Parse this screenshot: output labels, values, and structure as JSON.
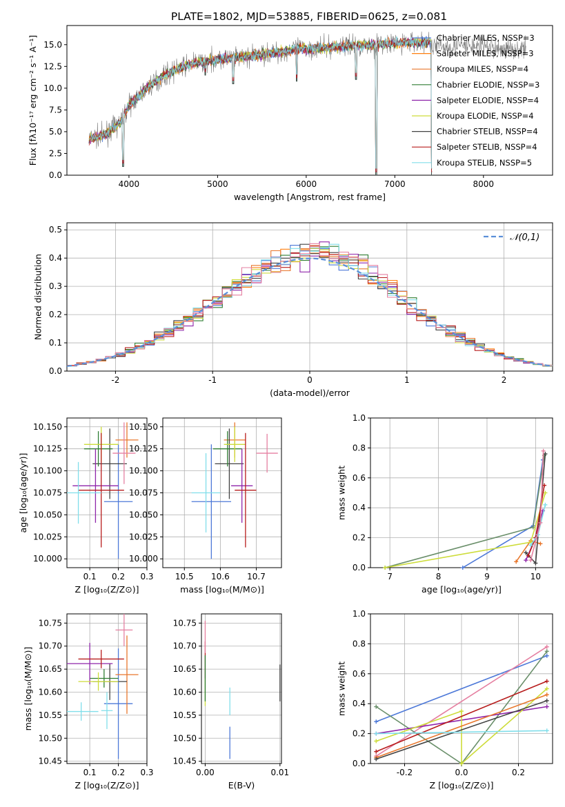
{
  "title": "PLATE=1802, MJD=53885, FIBERID=0625, z=0.081",
  "colors": [
    "#4c78d8",
    "#ff7f0e",
    "#e8762b",
    "#2e7d32",
    "#8e24aa",
    "#cddc39",
    "#424242",
    "#b71c1c",
    "#80deea",
    "#e57fa0",
    "#6a8f6a"
  ],
  "chart_data": [
    {
      "type": "line",
      "id": "spectrum",
      "xlabel": "wavelength [Angstrom, rest frame]",
      "ylabel": "Flux [fλ10⁻¹⁷ erg cm⁻² s⁻¹ A⁻¹]",
      "xlim": [
        3300,
        8780
      ],
      "ylim": [
        0,
        17.2
      ],
      "xticks": [
        4000,
        5000,
        6000,
        7000,
        8000
      ],
      "yticks": [
        0.0,
        2.5,
        5.0,
        7.5,
        10.0,
        12.5,
        15.0
      ],
      "x_range": [
        3550,
        7420
      ],
      "continuum": [
        [
          3550,
          4.2
        ],
        [
          3700,
          4.5
        ],
        [
          3900,
          6.0
        ],
        [
          4000,
          8.0
        ],
        [
          4200,
          10.0
        ],
        [
          4400,
          11.5
        ],
        [
          4700,
          12.8
        ],
        [
          5000,
          13.3
        ],
        [
          5300,
          13.6
        ],
        [
          5600,
          14.0
        ],
        [
          5900,
          14.5
        ],
        [
          6200,
          14.6
        ],
        [
          6500,
          14.9
        ],
        [
          6800,
          15.0
        ],
        [
          7100,
          15.2
        ],
        [
          7420,
          15.3
        ]
      ],
      "dips": [
        [
          3934,
          1.0
        ],
        [
          4861,
          11.5
        ],
        [
          5175,
          10.5
        ],
        [
          5893,
          10.8
        ],
        [
          6563,
          11.0
        ],
        [
          6790,
          0.0
        ],
        [
          7420,
          0.0
        ]
      ],
      "legend": [
        {
          "label": "Chabrier MILES, NSSP=3",
          "color": "#4c78d8"
        },
        {
          "label": "Salpeter MILES, NSSP=3",
          "color": "#ff7f0e"
        },
        {
          "label": "Kroupa MILES, NSSP=4",
          "color": "#e8762b"
        },
        {
          "label": "Chabrier ELODIE, NSSP=3",
          "color": "#2e7d32"
        },
        {
          "label": "Salpeter ELODIE, NSSP=4",
          "color": "#8e24aa"
        },
        {
          "label": "Kroupa ELODIE, NSSP=4",
          "color": "#cddc39"
        },
        {
          "label": "Chabrier STELIB, NSSP=4",
          "color": "#424242"
        },
        {
          "label": "Salpeter STELIB, NSSP=4",
          "color": "#b71c1c"
        },
        {
          "label": "Kroupa STELIB, NSSP=5",
          "color": "#80deea"
        }
      ],
      "grid": false,
      "legend_position": "right"
    },
    {
      "type": "line",
      "id": "residuals",
      "xlabel": "(data-model)/error",
      "ylabel": "Normed distribution",
      "xlim": [
        -2.5,
        2.5
      ],
      "ylim": [
        0,
        0.525
      ],
      "xticks": [
        -2,
        -1,
        0,
        1,
        2
      ],
      "yticks": [
        0.0,
        0.1,
        0.2,
        0.3,
        0.4,
        0.5
      ],
      "bin_width": 0.1,
      "legend": [
        {
          "label": "𝒩(0,1)",
          "color": "#5b8fd8"
        }
      ],
      "grid": true,
      "legend_position": "top-right"
    },
    {
      "type": "scatter",
      "id": "age_vs_Z",
      "xlabel": "Z [log₁₀(Z/Z⊙)]",
      "ylabel": "age  [log₁₀(age/yr)]",
      "xlim": [
        0.02,
        0.3
      ],
      "ylim": [
        9.99,
        10.16
      ],
      "xticks": [
        0.1,
        0.2,
        0.3
      ],
      "yticks": [
        10.0,
        10.025,
        10.05,
        10.075,
        10.1,
        10.125,
        10.15
      ],
      "points": [
        {
          "x": 0.2,
          "y": 10.065,
          "xerr": 0.05,
          "yerr": 0.065,
          "color": "#4c78d8"
        },
        {
          "x": 0.23,
          "y": 10.135,
          "xerr": 0.04,
          "yerr": 0.02,
          "color": "#e8762b"
        },
        {
          "x": 0.17,
          "y": 10.108,
          "xerr": 0.06,
          "yerr": 0.04,
          "color": "#424242"
        },
        {
          "x": 0.13,
          "y": 10.125,
          "xerr": 0.05,
          "yerr": 0.02,
          "color": "#2e7d32"
        },
        {
          "x": 0.12,
          "y": 10.083,
          "xerr": 0.08,
          "yerr": 0.042,
          "color": "#8e24aa"
        },
        {
          "x": 0.14,
          "y": 10.13,
          "xerr": 0.06,
          "yerr": 0.02,
          "color": "#cddc39"
        },
        {
          "x": 0.14,
          "y": 10.078,
          "xerr": 0.08,
          "yerr": 0.065,
          "color": "#b71c1c"
        },
        {
          "x": 0.06,
          "y": 10.075,
          "xerr": 0.08,
          "yerr": 0.035,
          "color": "#80deea"
        },
        {
          "x": 0.22,
          "y": 10.12,
          "xerr": 0.04,
          "yerr": 0.035,
          "color": "#e57fa0"
        }
      ],
      "grid": true
    },
    {
      "type": "scatter",
      "id": "age_vs_mass",
      "xlabel": "mass [log₁₀(M/M⊙)]",
      "ylabel": "",
      "xlim": [
        10.44,
        10.77
      ],
      "ylim": [
        9.99,
        10.16
      ],
      "xticks": [
        10.5,
        10.6,
        10.7
      ],
      "yticks": [
        10.0,
        10.025,
        10.05,
        10.075,
        10.1,
        10.125,
        10.15
      ],
      "points": [
        {
          "x": 10.575,
          "y": 10.065,
          "xerr": 0.055,
          "yerr": 0.065,
          "color": "#4c78d8"
        },
        {
          "x": 10.64,
          "y": 10.135,
          "xerr": 0.03,
          "yerr": 0.02,
          "color": "#e8762b"
        },
        {
          "x": 10.625,
          "y": 10.108,
          "xerr": 0.04,
          "yerr": 0.04,
          "color": "#424242"
        },
        {
          "x": 10.62,
          "y": 10.125,
          "xerr": 0.04,
          "yerr": 0.02,
          "color": "#2e7d32"
        },
        {
          "x": 10.66,
          "y": 10.083,
          "xerr": 0.03,
          "yerr": 0.042,
          "color": "#8e24aa"
        },
        {
          "x": 10.64,
          "y": 10.13,
          "xerr": 0.03,
          "yerr": 0.02,
          "color": "#cddc39"
        },
        {
          "x": 10.67,
          "y": 10.078,
          "xerr": 0.03,
          "yerr": 0.065,
          "color": "#b71c1c"
        },
        {
          "x": 10.56,
          "y": 10.075,
          "xerr": 0.04,
          "yerr": 0.045,
          "color": "#80deea"
        },
        {
          "x": 10.73,
          "y": 10.12,
          "xerr": 0.03,
          "yerr": 0.022,
          "color": "#e57fa0"
        }
      ],
      "grid": true
    },
    {
      "type": "line",
      "id": "weight_vs_age",
      "xlabel": "age  [log₁₀(age/yr)]",
      "ylabel": "mass weight",
      "xlim": [
        6.6,
        10.35
      ],
      "ylim": [
        0,
        1.0
      ],
      "xticks": [
        7,
        8,
        9,
        10
      ],
      "yticks": [
        0.0,
        0.2,
        0.4,
        0.6,
        0.8,
        1.0
      ],
      "series": [
        {
          "color": "#4c78d8",
          "x": [
            8.5,
            9.95,
            10.15
          ],
          "y": [
            0.0,
            0.28,
            0.72
          ]
        },
        {
          "color": "#e8762b",
          "x": [
            9.6,
            9.9,
            10.1
          ],
          "y": [
            0.04,
            0.18,
            0.16
          ]
        },
        {
          "color": "#6a8f6a",
          "x": [
            6.9,
            9.95,
            10.18
          ],
          "y": [
            0.0,
            0.27,
            0.75
          ]
        },
        {
          "color": "#8e24aa",
          "x": [
            9.8,
            10.0,
            10.15
          ],
          "y": [
            0.05,
            0.2,
            0.38
          ]
        },
        {
          "color": "#cddc39",
          "x": [
            6.9,
            9.9,
            10.2
          ],
          "y": [
            0.0,
            0.17,
            0.5
          ]
        },
        {
          "color": "#424242",
          "x": [
            9.8,
            10.0,
            10.2
          ],
          "y": [
            0.1,
            0.03,
            0.76
          ]
        },
        {
          "color": "#b71c1c",
          "x": [
            9.85,
            10.0,
            10.18
          ],
          "y": [
            0.08,
            0.2,
            0.55
          ]
        },
        {
          "color": "#80deea",
          "x": [
            9.9,
            10.05,
            10.2
          ],
          "y": [
            0.15,
            0.22,
            0.42
          ]
        },
        {
          "color": "#e57fa0",
          "x": [
            9.9,
            10.1,
            10.16
          ],
          "y": [
            0.05,
            0.3,
            0.78
          ]
        }
      ],
      "grid": true
    },
    {
      "type": "scatter",
      "id": "mass_vs_Z",
      "xlabel": "Z [log₁₀(Z/Z⊙)]",
      "ylabel": "mass [log₁₀(M/M⊙)]",
      "xlim": [
        0.02,
        0.3
      ],
      "ylim": [
        10.445,
        10.77
      ],
      "xticks": [
        0.1,
        0.2,
        0.3
      ],
      "yticks": [
        10.45,
        10.5,
        10.55,
        10.6,
        10.65,
        10.7,
        10.75
      ],
      "points": [
        {
          "x": 0.2,
          "y": 10.575,
          "xerr": 0.05,
          "yerr": 0.12,
          "color": "#4c78d8"
        },
        {
          "x": 0.23,
          "y": 10.638,
          "xerr": 0.04,
          "yerr": 0.085,
          "color": "#e8762b"
        },
        {
          "x": 0.17,
          "y": 10.623,
          "xerr": 0.06,
          "yerr": 0.04,
          "color": "#424242"
        },
        {
          "x": 0.15,
          "y": 10.63,
          "xerr": 0.05,
          "yerr": 0.02,
          "color": "#2e7d32"
        },
        {
          "x": 0.1,
          "y": 10.662,
          "xerr": 0.08,
          "yerr": 0.045,
          "color": "#8e24aa"
        },
        {
          "x": 0.13,
          "y": 10.623,
          "xerr": 0.07,
          "yerr": 0.02,
          "color": "#cddc39"
        },
        {
          "x": 0.14,
          "y": 10.672,
          "xerr": 0.08,
          "yerr": 0.02,
          "color": "#b71c1c"
        },
        {
          "x": 0.07,
          "y": 10.558,
          "xerr": 0.06,
          "yerr": 0.02,
          "color": "#80deea"
        },
        {
          "x": 0.16,
          "y": 10.56,
          "xerr": 0.02,
          "yerr": 0.04,
          "color": "#80deea"
        },
        {
          "x": 0.22,
          "y": 10.735,
          "xerr": 0.03,
          "yerr": 0.035,
          "color": "#e57fa0"
        }
      ],
      "grid": true
    },
    {
      "type": "scatter",
      "id": "mass_vs_ebv",
      "xlabel": "E(B-V)",
      "ylabel": "",
      "xlim": [
        -0.0005,
        0.0102
      ],
      "ylim": [
        10.445,
        10.77
      ],
      "xticks": [
        0.0,
        0.01
      ],
      "xtick_labels": [
        "0.00",
        "0.01"
      ],
      "yticks": [
        10.45,
        10.5,
        10.55,
        10.6,
        10.65,
        10.7,
        10.75
      ],
      "points": [
        {
          "x": 0.0,
          "y": 10.67,
          "yerr": 0.04,
          "color": "#b71c1c"
        },
        {
          "x": 0.0,
          "y": 10.72,
          "yerr": 0.035,
          "color": "#e57fa0"
        },
        {
          "x": 0.0,
          "y": 10.6,
          "yerr": 0.03,
          "color": "#cddc39"
        },
        {
          "x": 0.0,
          "y": 10.63,
          "yerr": 0.05,
          "color": "#2e7d32"
        },
        {
          "x": 0.0033,
          "y": 10.58,
          "yerr": 0.03,
          "color": "#80deea"
        },
        {
          "x": 0.0033,
          "y": 10.49,
          "yerr": 0.035,
          "color": "#4c78d8"
        },
        {
          "x": 0.01,
          "y": 10.62,
          "yerr": 0.04,
          "color": "#424242"
        }
      ],
      "grid": true
    },
    {
      "type": "line",
      "id": "weight_vs_Z",
      "xlabel": "Z [log₁₀(Z/Z⊙)]",
      "ylabel": "mass weight",
      "xlim": [
        -0.32,
        0.32
      ],
      "ylim": [
        0,
        1.0
      ],
      "xticks": [
        -0.2,
        0.0,
        0.2
      ],
      "yticks": [
        0.0,
        0.2,
        0.4,
        0.6,
        0.8,
        1.0
      ],
      "series": [
        {
          "color": "#4c78d8",
          "x": [
            -0.3,
            0.3
          ],
          "y": [
            0.28,
            0.72
          ]
        },
        {
          "color": "#e57fa0",
          "x": [
            -0.3,
            0.3
          ],
          "y": [
            0.05,
            0.78
          ]
        },
        {
          "color": "#6a8f6a",
          "x": [
            -0.3,
            0.0,
            0.3
          ],
          "y": [
            0.38,
            0.0,
            0.75
          ]
        },
        {
          "color": "#8e24aa",
          "x": [
            -0.3,
            0.3
          ],
          "y": [
            0.2,
            0.38
          ]
        },
        {
          "color": "#cddc39",
          "x": [
            -0.3,
            0.0,
            0.0,
            0.3
          ],
          "y": [
            0.15,
            0.35,
            0.0,
            0.5
          ]
        },
        {
          "color": "#b71c1c",
          "x": [
            -0.3,
            0.3
          ],
          "y": [
            0.08,
            0.55
          ]
        },
        {
          "color": "#e8762b",
          "x": [
            -0.3,
            0.3
          ],
          "y": [
            0.04,
            0.46
          ]
        },
        {
          "color": "#424242",
          "x": [
            -0.3,
            0.3
          ],
          "y": [
            0.03,
            0.42
          ]
        },
        {
          "color": "#80deea",
          "x": [
            -0.3,
            0.3
          ],
          "y": [
            0.2,
            0.22
          ]
        }
      ],
      "grid": true
    }
  ]
}
